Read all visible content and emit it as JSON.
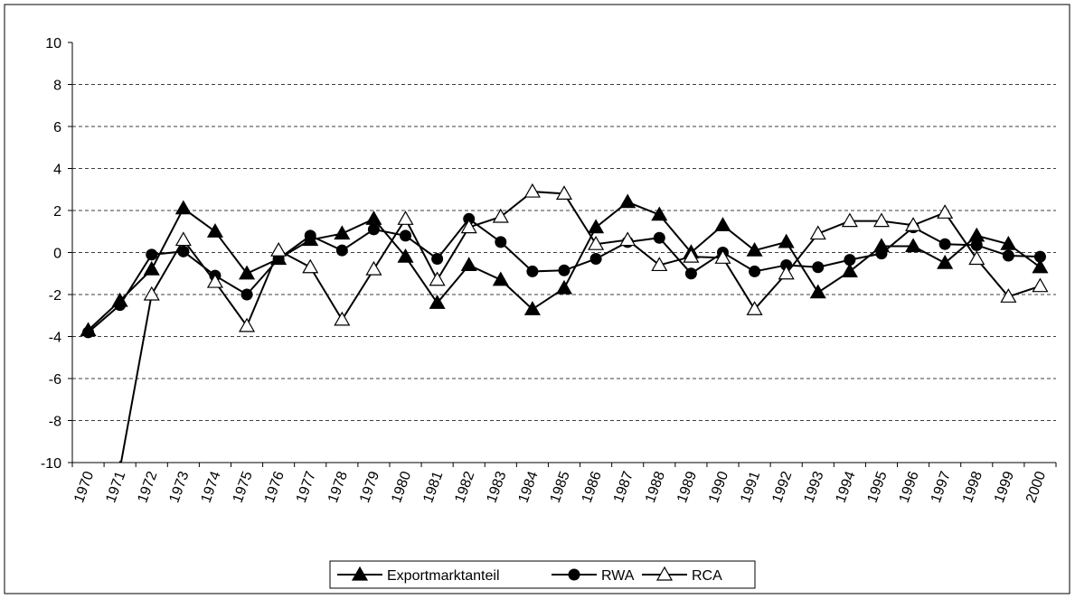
{
  "chart_data": {
    "type": "line",
    "categories": [
      "1970",
      "1971",
      "1972",
      "1973",
      "1974",
      "1975",
      "1976",
      "1977",
      "1978",
      "1979",
      "1980",
      "1981",
      "1982",
      "1983",
      "1984",
      "1985",
      "1986",
      "1987",
      "1988",
      "1989",
      "1990",
      "1991",
      "1992",
      "1993",
      "1994",
      "1995",
      "1996",
      "1997",
      "1998",
      "1999",
      "2000"
    ],
    "series": [
      {
        "name": "Exportmarktanteil",
        "color": "#000000",
        "marker": "filled-triangle",
        "values": [
          -3.7,
          -2.3,
          -0.8,
          2.1,
          1.0,
          -1.0,
          -0.3,
          0.6,
          0.9,
          1.6,
          -0.2,
          -2.4,
          -0.6,
          -1.3,
          -2.7,
          -1.7,
          1.2,
          2.4,
          1.8,
          0.0,
          1.3,
          0.1,
          0.5,
          -1.9,
          -0.9,
          0.3,
          0.3,
          -0.5,
          0.8,
          0.4,
          -0.7
        ]
      },
      {
        "name": "RWA",
        "color": "#000000",
        "marker": "filled-circle",
        "values": [
          -3.8,
          -2.5,
          -0.1,
          0.05,
          -1.1,
          -2.0,
          -0.3,
          0.8,
          0.1,
          1.1,
          0.8,
          -0.3,
          1.6,
          0.5,
          -0.9,
          -0.85,
          -0.3,
          0.5,
          0.7,
          -1.0,
          0.0,
          -0.9,
          -0.6,
          -0.7,
          -0.35,
          -0.05,
          1.2,
          0.4,
          0.35,
          -0.15,
          -0.2
        ]
      },
      {
        "name": "RCA",
        "color": "#000000",
        "marker": "open-triangle",
        "values": [
          null,
          -10.3,
          -2.0,
          0.6,
          -1.4,
          -3.5,
          0.1,
          -0.7,
          -3.2,
          -0.8,
          1.6,
          -1.3,
          1.2,
          1.7,
          2.9,
          2.8,
          0.4,
          0.6,
          -0.6,
          -0.2,
          -0.25,
          -2.7,
          -1.0,
          0.9,
          1.5,
          1.5,
          1.3,
          1.9,
          -0.3,
          -2.1,
          -1.6
        ]
      }
    ],
    "ylim": [
      -10,
      10
    ],
    "yticks": [
      -10,
      -8,
      -6,
      -4,
      -2,
      0,
      2,
      4,
      6,
      8,
      10
    ],
    "grid": true,
    "legend": "bottom"
  }
}
